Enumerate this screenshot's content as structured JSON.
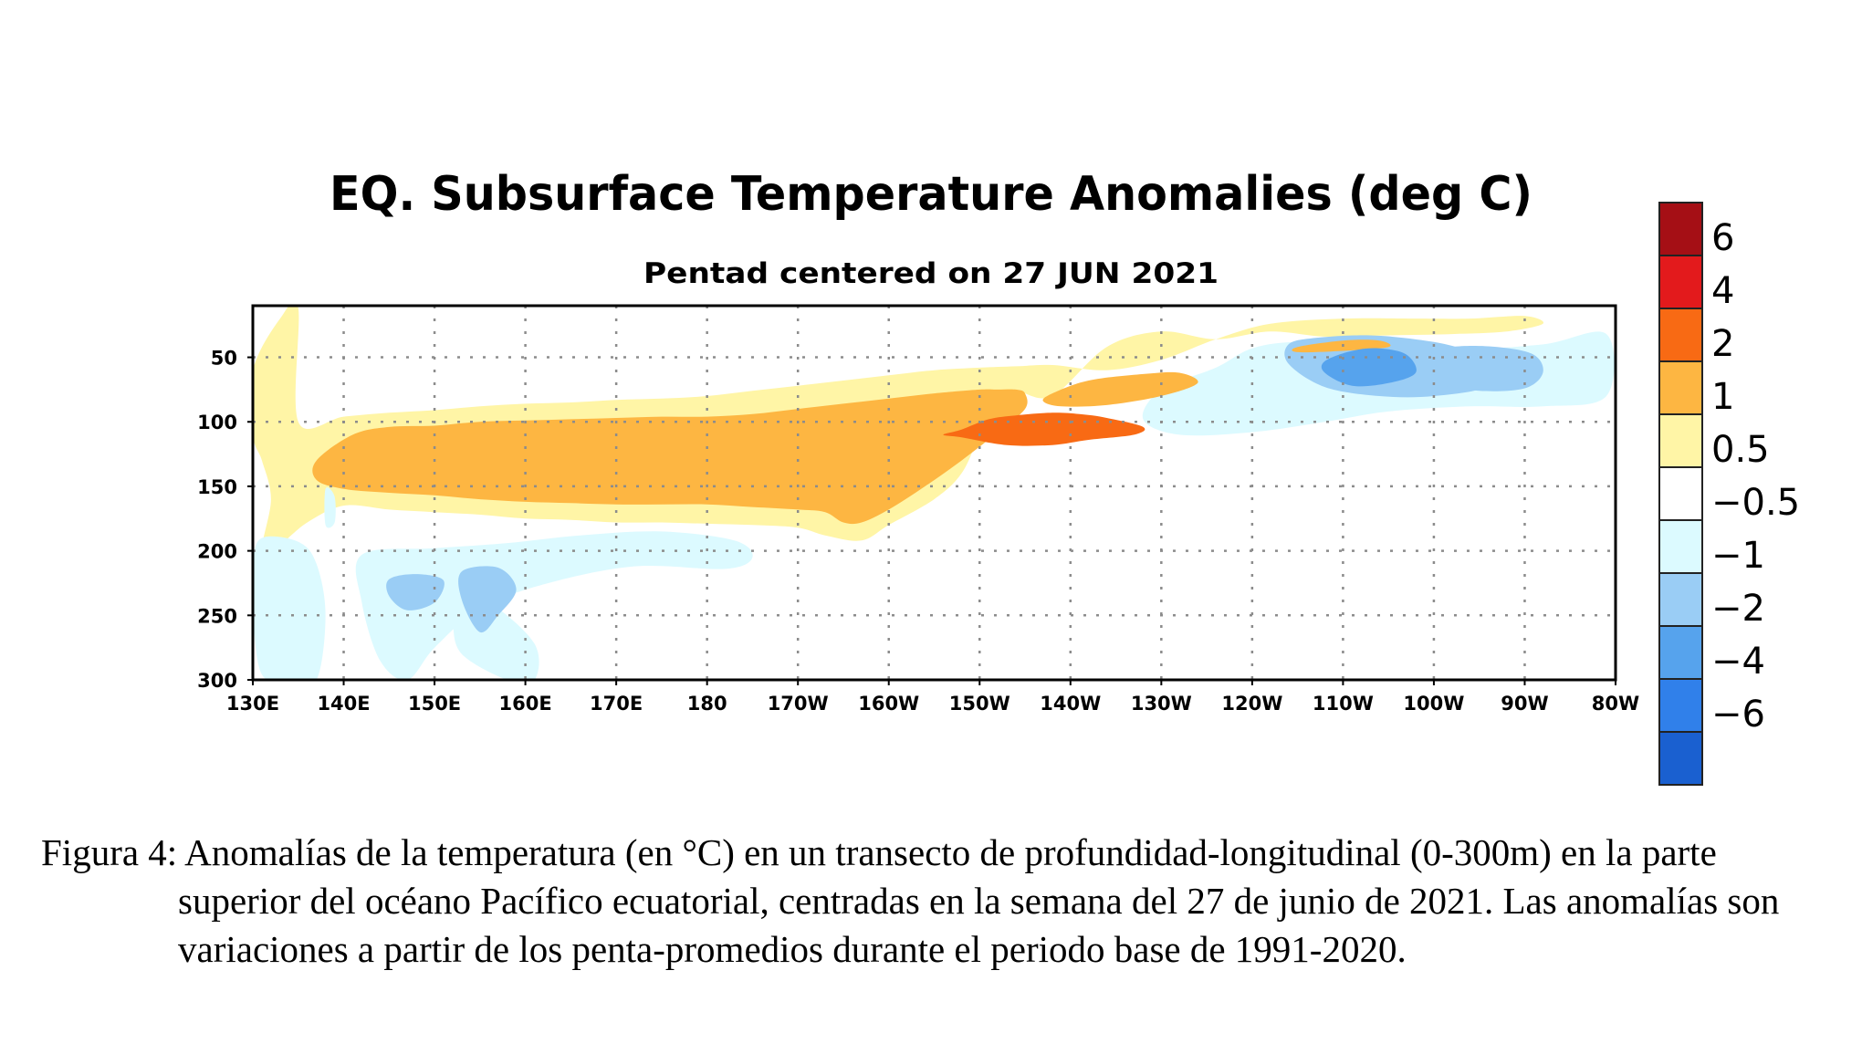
{
  "chart_data": {
    "type": "heatmap",
    "title": "EQ. Subsurface Temperature Anomalies (deg C)",
    "subtitle": "Pentad centered on 27 JUN 2021",
    "x_ticks": [
      "130E",
      "140E",
      "150E",
      "160E",
      "170E",
      "180",
      "170W",
      "160W",
      "150W",
      "140W",
      "130W",
      "120W",
      "110W",
      "100W",
      "90W",
      "80W"
    ],
    "y_ticks": [
      "50",
      "100",
      "150",
      "200",
      "250",
      "300"
    ],
    "x_range": [
      130,
      280
    ],
    "y_range": [
      10,
      300
    ],
    "grid": true,
    "colorbar": {
      "labels": [
        "6",
        "4",
        "2",
        "1",
        "0.5",
        "−0.5",
        "−1",
        "−2",
        "−4",
        "−6"
      ],
      "colors": [
        "#a50f15",
        "#e31a1c",
        "#f86a14",
        "#fdb642",
        "#fff5a6",
        "#ffffff",
        "#dcfaff",
        "#9acdf5",
        "#56a3ed",
        "#3080ea",
        "#1a60d0"
      ]
    },
    "regions": [
      {
        "level": 1,
        "x": [
          137,
          141,
          145,
          150,
          155,
          160,
          165,
          170,
          175,
          180,
          185,
          190,
          195,
          200,
          205,
          210,
          212,
          214,
          215,
          215,
          212,
          208,
          204,
          200,
          197,
          195,
          193,
          190,
          185,
          180,
          175,
          170,
          165,
          160,
          155,
          150,
          145,
          140,
          137
        ],
        "y": [
          130,
          110,
          104,
          103,
          100,
          99,
          98,
          97,
          96,
          96,
          94,
          90,
          86,
          82,
          78,
          75,
          75,
          75,
          78,
          90,
          108,
          130,
          150,
          168,
          178,
          178,
          170,
          168,
          166,
          164,
          164,
          164,
          163,
          162,
          160,
          157,
          155,
          152,
          145
        ]
      },
      {
        "level": 0.5,
        "x": [
          135,
          140,
          145,
          150,
          155,
          160,
          165,
          170,
          175,
          180,
          185,
          190,
          195,
          200,
          205,
          210,
          214,
          218,
          224,
          230,
          236,
          242,
          250,
          258,
          264,
          270,
          272,
          268,
          262,
          255,
          248,
          242,
          236,
          230,
          224,
          218,
          214,
          212,
          210,
          208,
          205,
          200,
          197,
          193,
          190,
          185,
          180,
          175,
          170,
          165,
          160,
          155,
          150,
          145,
          140,
          136,
          133,
          131,
          132,
          131,
          130,
          130,
          133,
          135
        ],
        "y": [
          100,
          96,
          93,
          91,
          88,
          86,
          85,
          83,
          82,
          80,
          76,
          72,
          68,
          64,
          60,
          58,
          57,
          56,
          60,
          52,
          36,
          24,
          20,
          20,
          20,
          18,
          24,
          30,
          32,
          33,
          34,
          30,
          36,
          30,
          42,
          80,
          76,
          80,
          110,
          140,
          160,
          180,
          192,
          188,
          182,
          180,
          179,
          178,
          178,
          176,
          175,
          172,
          170,
          168,
          165,
          178,
          195,
          200,
          160,
          130,
          110,
          60,
          20,
          12
        ]
      },
      {
        "level": -0.5,
        "x": [
          230,
          236,
          240,
          245,
          252,
          262,
          272,
          279,
          279,
          272,
          264,
          255,
          248,
          240,
          232,
          228
        ],
        "y": [
          75,
          58,
          43,
          38,
          40,
          44,
          40,
          32,
          80,
          88,
          88,
          92,
          100,
          108,
          110,
          98
        ]
      },
      {
        "level": -0.5,
        "x": [
          131,
          135,
          137,
          138,
          137,
          134,
          131,
          130,
          130
        ],
        "y": [
          190,
          193,
          210,
          250,
          300,
          300,
          296,
          250,
          210
        ]
      },
      {
        "level": -0.5,
        "x": [
          142,
          150,
          158,
          166,
          175,
          183,
          185,
          182,
          172,
          162,
          155,
          150,
          147,
          144,
          142
        ],
        "y": [
          203,
          198,
          194,
          188,
          185,
          192,
          205,
          214,
          212,
          226,
          245,
          275,
          300,
          285,
          240
        ]
      },
      {
        "level": -0.5,
        "x": [
          152,
          156,
          161,
          161,
          158,
          153,
          152
        ],
        "y": [
          235,
          240,
          272,
          300,
          300,
          280,
          255
        ]
      },
      {
        "level": -0.5,
        "x": [
          138,
          139,
          139,
          138
        ],
        "y": [
          152,
          158,
          178,
          180
        ]
      },
      {
        "level": -1,
        "x": [
          244,
          247,
          253,
          259,
          263,
          266,
          266,
          260,
          254,
          248,
          244
        ],
        "y": [
          40,
          35,
          33,
          37,
          43,
          52,
          72,
          80,
          80,
          73,
          55
        ]
      },
      {
        "level": -1,
        "x": [
          259,
          262,
          267,
          271,
          272,
          270,
          265,
          260,
          259
        ],
        "y": [
          50,
          42,
          42,
          48,
          62,
          74,
          76,
          70,
          60
        ]
      },
      {
        "level": -1,
        "x": [
          145,
          148,
          151,
          150,
          147,
          145
        ],
        "y": [
          222,
          218,
          223,
          240,
          246,
          235
        ]
      },
      {
        "level": -1,
        "x": [
          153,
          157,
          159,
          157,
          155,
          153
        ],
        "y": [
          216,
          213,
          230,
          250,
          263,
          238
        ]
      },
      {
        "level": -2,
        "x": [
          248,
          251,
          254,
          257,
          258,
          255,
          251,
          248
        ],
        "y": [
          53,
          45,
          43,
          48,
          62,
          70,
          72,
          62
        ]
      },
      {
        "level": 1,
        "x": [
          245,
          250,
          254,
          255,
          250,
          245
        ],
        "y": [
          42,
          37,
          37,
          42,
          45,
          46
        ]
      },
      {
        "level": 1,
        "x": [
          218,
          222,
          228,
          232,
          234,
          230,
          224,
          219,
          217
        ],
        "y": [
          78,
          68,
          63,
          62,
          70,
          80,
          87,
          88,
          84
        ]
      },
      {
        "level": 2,
        "x": [
          208,
          211,
          214,
          218,
          221,
          224,
          228,
          227,
          222,
          218,
          213,
          208,
          206
        ],
        "y": [
          106,
          98,
          95,
          93,
          94,
          97,
          104,
          110,
          114,
          118,
          118,
          112,
          110
        ]
      }
    ]
  },
  "caption": "Figura 4: Anomalías de la temperatura (en °C) en un transecto de profundidad-longitudinal (0-300m) en la parte superior del océano Pacífico ecuatorial, centradas en la semana del 27 de junio de 2021. Las anomalías son variaciones a partir de los penta-promedios durante el periodo base de 1991-2020."
}
